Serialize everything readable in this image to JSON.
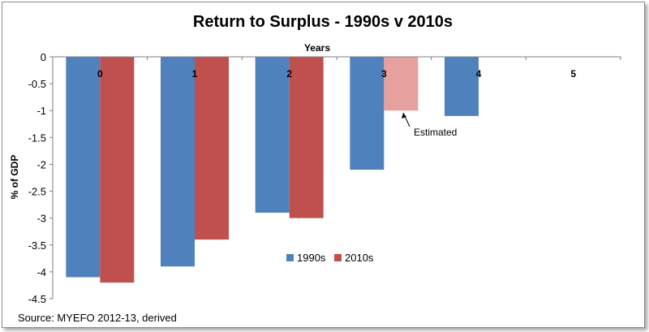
{
  "chart_data": {
    "type": "bar",
    "title": "Return to Surplus - 1990s v 2010s",
    "xlabel": "Years",
    "ylabel": "% of GDP",
    "categories": [
      "0",
      "1",
      "2",
      "3",
      "4",
      "5"
    ],
    "series": [
      {
        "name": "1990s",
        "color": "#4f81bd",
        "values": [
          -4.1,
          -3.9,
          -2.9,
          -2.1,
          -1.1,
          null
        ]
      },
      {
        "name": "2010s",
        "color": "#c0504d",
        "values": [
          -4.2,
          -3.4,
          -3.0,
          -1.0,
          null,
          null
        ]
      }
    ],
    "estimated": {
      "series": "2010s",
      "category": "3",
      "color": "#e6a09e"
    },
    "ylim": [
      -4.5,
      0
    ],
    "yticks": [
      "0",
      "-0.5",
      "-1",
      "-1.5",
      "-2",
      "-2.5",
      "-3",
      "-3.5",
      "-4",
      "-4.5"
    ],
    "grid": false,
    "legend_position": "bottom-center",
    "annotation": "Estimated",
    "source": "Source: MYEFO 2012-13,  derived"
  }
}
